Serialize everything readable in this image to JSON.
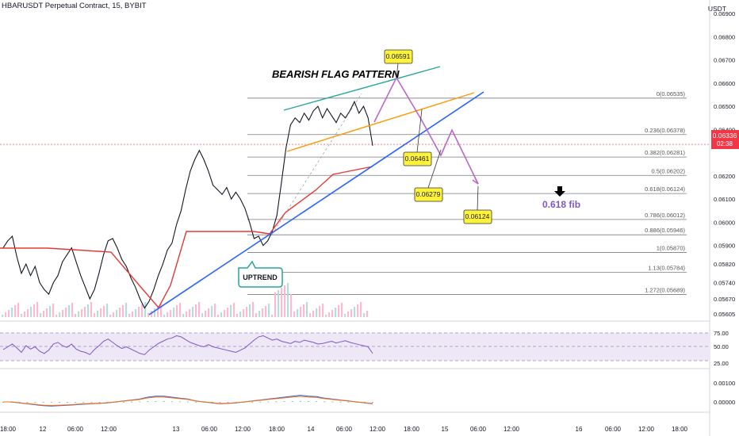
{
  "header": {
    "title": "HBARUSDT Perpetual Contract, 15, BYBIT",
    "currency": "USDT"
  },
  "chart_data": [
    {
      "type": "line",
      "title": "HBARUSDT Perpetual Contract, 15, BYBIT",
      "ylim": [
        0.05605,
        0.0691
      ],
      "price_ticks": [
        "0.06900",
        "0.06800",
        "0.06700",
        "0.06600",
        "0.06500",
        "0.06400",
        "0.06200",
        "0.06100",
        "0.06000",
        "0.05900",
        "0.05820",
        "0.05740",
        "0.05670",
        "0.05605"
      ],
      "current_price": "0.06336",
      "countdown": "02:38",
      "time_ticks": [
        "18:00",
        "12",
        "06:00",
        "12:00",
        "13",
        "06:00",
        "12:00",
        "18:00",
        "14",
        "06:00",
        "12:00",
        "18:00",
        "15",
        "06:00",
        "12:00",
        "16",
        "06:00",
        "12:00",
        "18:00"
      ],
      "series": [
        {
          "name": "price",
          "values": [
            0.0589,
            0.0592,
            0.0594,
            0.0585,
            0.0578,
            0.0582,
            0.0577,
            0.0581,
            0.0574,
            0.0571,
            0.0569,
            0.0574,
            0.0577,
            0.0583,
            0.0586,
            0.0589,
            0.0583,
            0.0577,
            0.0572,
            0.0567,
            0.0571,
            0.0578,
            0.0586,
            0.0592,
            0.0593,
            0.0589,
            0.0584,
            0.0581,
            0.0576,
            0.0572,
            0.0567,
            0.0563,
            0.0566,
            0.0571,
            0.0577,
            0.0582,
            0.0588,
            0.0591,
            0.0599,
            0.0605,
            0.0614,
            0.0622,
            0.0627,
            0.0631,
            0.0627,
            0.0622,
            0.0616,
            0.0614,
            0.0612,
            0.0615,
            0.061,
            0.0613,
            0.061,
            0.0606,
            0.06,
            0.0593,
            0.0594,
            0.059,
            0.0592,
            0.0596,
            0.0603,
            0.0617,
            0.0632,
            0.0642,
            0.0645,
            0.0643,
            0.0647,
            0.0644,
            0.0648,
            0.065,
            0.0645,
            0.0649,
            0.0646,
            0.0643,
            0.0647,
            0.0645,
            0.0648,
            0.0652,
            0.0647,
            0.065,
            0.0645,
            0.0633
          ]
        },
        {
          "name": "rsi",
          "values": [
            45,
            50,
            55,
            48,
            40,
            52,
            46,
            50,
            42,
            38,
            44,
            55,
            58,
            52,
            49,
            55,
            46,
            42,
            40,
            36,
            45,
            52,
            60,
            64,
            58,
            52,
            47,
            50,
            46,
            42,
            38,
            36,
            44,
            50,
            56,
            60,
            64,
            66,
            70,
            68,
            63,
            58,
            55,
            52,
            50,
            54,
            50,
            48,
            46,
            44,
            42,
            40,
            44,
            48,
            55,
            62,
            68,
            70,
            66,
            62,
            64,
            60,
            58,
            56,
            60,
            58,
            62,
            60,
            58,
            55,
            56,
            58,
            60,
            57,
            59,
            61,
            58,
            56,
            54,
            52,
            50,
            38
          ]
        },
        {
          "name": "macd",
          "values": [
            0,
            0,
            -5e-05,
            -0.0001,
            -0.00015,
            -0.0002,
            -0.00022,
            -0.0002,
            -0.00018,
            -0.00015,
            -0.00012,
            -0.0001,
            -8e-05,
            -5e-05,
            0,
            5e-05,
            0.0001,
            0.00015,
            0.00025,
            0.0003,
            0.0003,
            0.00025,
            0.0002,
            0.00015,
            5e-05,
            0,
            -5e-05,
            -0.0001,
            -8e-05,
            -5e-05,
            0,
            5e-05,
            0.0001,
            0.00015,
            0.0002,
            0.00025,
            0.0003,
            0.00035,
            0.0003,
            0.00028,
            0.0002,
            0.00015,
            0.0001,
            5e-05,
            0,
            -5e-05,
            -0.0001
          ]
        }
      ]
    }
  ],
  "annotations": {
    "pattern_title": "BEARISH FLAG PATTERN",
    "uptrend_label": "UPTREND",
    "fib_label": "0.618 fib",
    "price_callouts": [
      "0.06591",
      "0.06461",
      "0.06279",
      "0.06124"
    ],
    "fib_levels": [
      {
        "label": "0(0.06535)",
        "value": 0.06535
      },
      {
        "label": "0.236(0.06378)",
        "value": 0.06378
      },
      {
        "label": "0.382(0.06281)",
        "value": 0.06281
      },
      {
        "label": "0.5(0.06202)",
        "value": 0.06202
      },
      {
        "label": "0.618(0.06124)",
        "value": 0.06124
      },
      {
        "label": "0.786(0.06012)",
        "value": 0.06012
      },
      {
        "label": "0.886(0.05946)",
        "value": 0.05946
      },
      {
        "label": "1(0.05870)",
        "value": 0.0587
      },
      {
        "label": "1.13(0.05784)",
        "value": 0.05784
      },
      {
        "label": "1.272(0.05689)",
        "value": 0.05689
      }
    ]
  },
  "rsi_panel": {
    "ticks": [
      "75.00",
      "50.00",
      "25.00"
    ]
  },
  "macd_panel": {
    "ticks": [
      "0.00100",
      "0.00000"
    ]
  },
  "colors": {
    "price_line": "#131722",
    "trend": "#2962ff",
    "flag_top": "#26a69a",
    "flag_bottom": "#ff9800",
    "projection": "#ba68c8",
    "supertrend": "#e53935",
    "callout_bg": "#fff23b",
    "rsi": "#7e57c2",
    "macd": "#2962ff",
    "signal": "#ff6d00",
    "current_price_tag": "#f23645"
  }
}
